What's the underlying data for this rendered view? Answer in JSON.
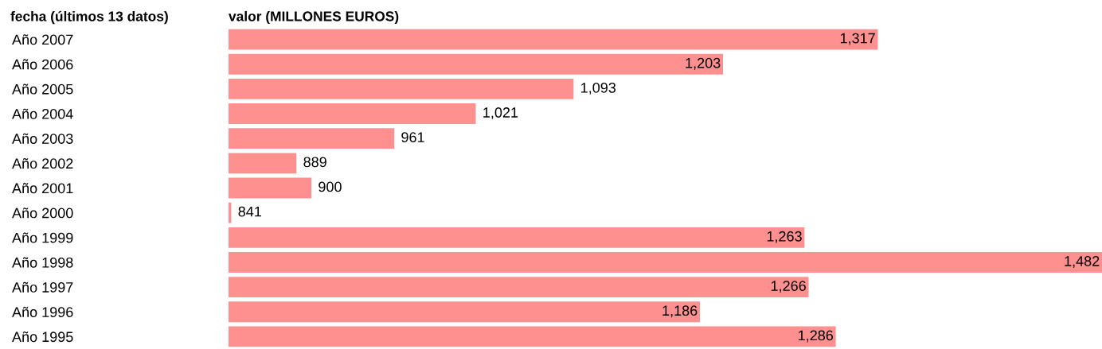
{
  "chart_data": {
    "type": "bar",
    "orientation": "horizontal",
    "ylabel": "fecha (últimos 13 datos)",
    "xlabel": "valor (MILLONES EUROS)",
    "categories": [
      "Año 2007",
      "Año 2006",
      "Año 2005",
      "Año 2004",
      "Año 2003",
      "Año 2002",
      "Año 2001",
      "Año 2000",
      "Año 1999",
      "Año 1998",
      "Año 1997",
      "Año 1996",
      "Año 1995"
    ],
    "values": [
      1317,
      1203,
      1093,
      1021,
      961,
      889,
      900,
      841,
      1263,
      1482,
      1266,
      1186,
      1286
    ],
    "value_labels": [
      "1,317",
      "1,203",
      "1,093",
      "1,021",
      "961",
      "889",
      "900",
      "841",
      "1,263",
      "1,482",
      "1,266",
      "1,186",
      "1,286"
    ],
    "color": "#ff9090",
    "xlim": [
      839,
      1482
    ],
    "tick_labels": "y"
  }
}
